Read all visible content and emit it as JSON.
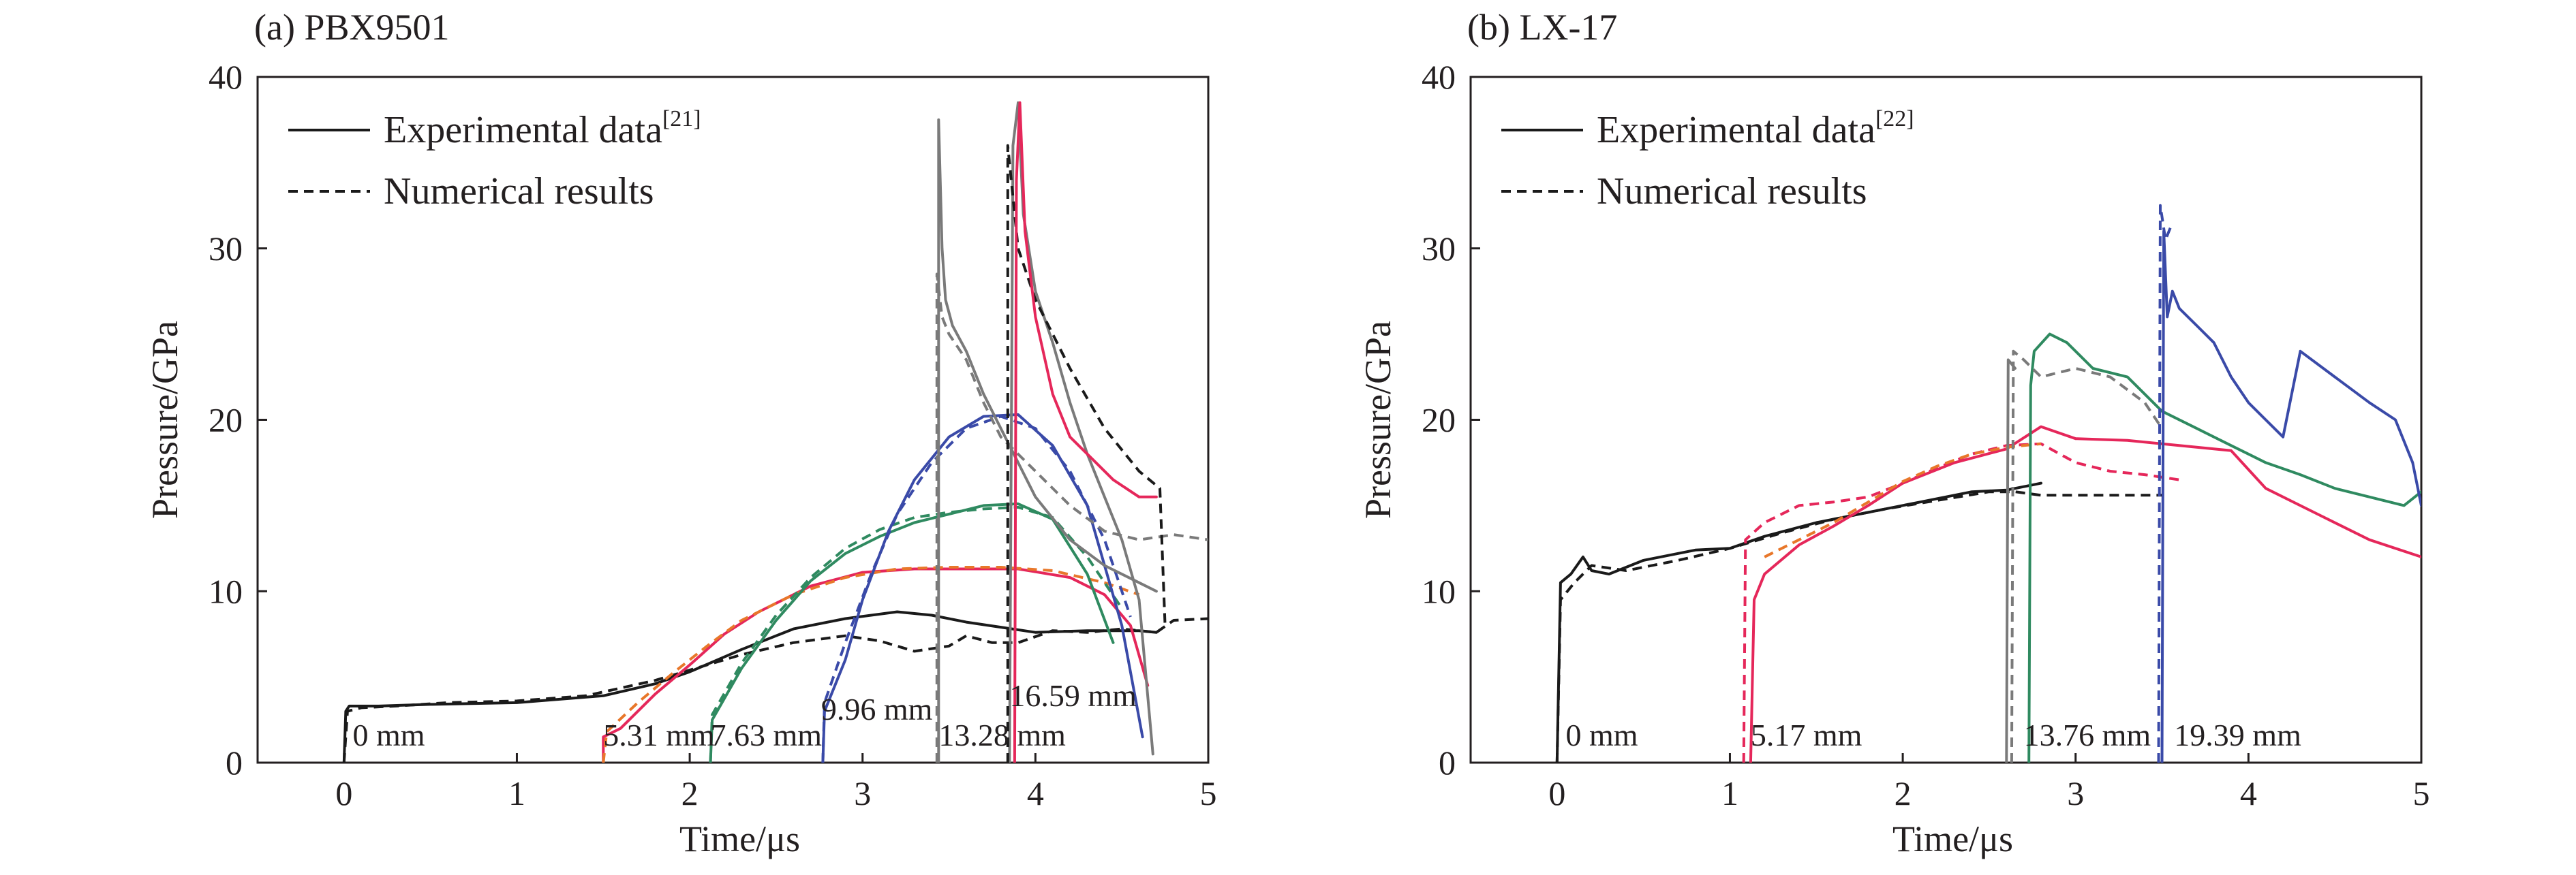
{
  "colors": {
    "axis": "#231f20",
    "black": "#1a1a1a",
    "red": "#e5275a",
    "green": "#2f8a60",
    "blue": "#3a4aa8",
    "gray": "#7a7a7a",
    "orange": "#e8772a"
  },
  "chart_data": [
    {
      "type": "line",
      "title": "(a) PBX9501",
      "xlabel": "Time/μs",
      "ylabel": "Pressure/GPa",
      "xlim": [
        -0.5,
        5
      ],
      "ylim": [
        0,
        40
      ],
      "xticks": [
        0,
        1,
        2,
        3,
        4,
        5
      ],
      "yticks": [
        0,
        10,
        20,
        30,
        40
      ],
      "grid": false,
      "legend": {
        "placement": "top-left",
        "entries": [
          {
            "label": "Experimental data",
            "sup": "[21]",
            "style": "solid"
          },
          {
            "label": "Numerical results",
            "sup": "",
            "style": "dashed"
          }
        ]
      },
      "annotations": [
        {
          "text": "0 mm",
          "x": 0.05,
          "y": 1.0,
          "color": "black"
        },
        {
          "text": "5.31 mm",
          "x": 1.5,
          "y": 1.0,
          "color": "red"
        },
        {
          "text": "7.63 mm",
          "x": 2.12,
          "y": 1.0,
          "color": "green"
        },
        {
          "text": "9.96 mm",
          "x": 2.76,
          "y": 2.5,
          "color": "blue"
        },
        {
          "text": "13.28 mm",
          "x": 3.44,
          "y": 1.0,
          "color": "gray"
        },
        {
          "text": "16.59 mm",
          "x": 3.85,
          "y": 3.3,
          "color": "black"
        }
      ],
      "series": [
        {
          "color": "black",
          "style": "solid",
          "x": [
            0,
            0.01,
            0.03,
            0.08,
            0.2,
            0.5,
            1.0,
            1.5,
            1.8,
            2.0,
            2.3,
            2.6,
            2.9,
            3.2,
            3.4,
            3.6,
            3.8,
            4.0,
            4.3,
            4.6,
            4.7
          ],
          "y": [
            0,
            3.0,
            3.3,
            3.3,
            3.3,
            3.4,
            3.5,
            3.9,
            4.6,
            5.3,
            6.6,
            7.8,
            8.4,
            8.8,
            8.6,
            8.2,
            7.9,
            7.6,
            7.7,
            7.7,
            7.6
          ]
        },
        {
          "color": "black",
          "style": "dashed",
          "x": [
            0,
            0.02,
            0.1,
            0.3,
            0.6,
            1.0,
            1.4,
            1.8,
            2.0,
            2.3,
            2.6,
            2.9,
            3.1,
            3.3,
            3.5,
            3.6,
            3.75,
            3.9,
            4.1,
            4.3,
            4.5,
            4.7,
            4.8,
            5.0
          ],
          "y": [
            0,
            3.0,
            3.2,
            3.3,
            3.5,
            3.6,
            3.9,
            4.8,
            5.4,
            6.3,
            7.0,
            7.4,
            7.1,
            6.5,
            6.8,
            7.4,
            7.0,
            7.0,
            7.7,
            7.6,
            7.8,
            7.6,
            8.3,
            8.4
          ]
        },
        {
          "color": "red",
          "style": "solid",
          "x": [
            1.5,
            1.5,
            1.6,
            1.8,
            2.0,
            2.2,
            2.4,
            2.7,
            3.0,
            3.3,
            3.6,
            3.9,
            4.2,
            4.4,
            4.55,
            4.65
          ],
          "y": [
            0,
            1.5,
            2.0,
            4.0,
            5.7,
            7.5,
            8.8,
            10.3,
            11.1,
            11.3,
            11.3,
            11.3,
            10.8,
            9.8,
            8.0,
            4.5
          ]
        },
        {
          "color": "orange",
          "style": "dashed",
          "x": [
            1.5,
            1.52,
            1.7,
            1.9,
            2.1,
            2.3,
            2.6,
            2.9,
            3.2,
            3.5,
            3.8,
            4.1,
            4.4,
            4.6
          ],
          "y": [
            0,
            1.8,
            3.5,
            5.2,
            6.8,
            8.3,
            9.8,
            10.8,
            11.3,
            11.4,
            11.4,
            11.2,
            10.5,
            9.8
          ]
        },
        {
          "color": "green",
          "style": "solid",
          "x": [
            2.12,
            2.13,
            2.3,
            2.5,
            2.7,
            2.9,
            3.1,
            3.3,
            3.5,
            3.7,
            3.9,
            4.1,
            4.3,
            4.45
          ],
          "y": [
            0,
            2.5,
            5.5,
            8.3,
            10.6,
            12.2,
            13.2,
            14.0,
            14.5,
            15.0,
            15.1,
            14.2,
            11.0,
            7.0
          ]
        },
        {
          "color": "green",
          "style": "dashed",
          "x": [
            2.12,
            2.13,
            2.3,
            2.5,
            2.7,
            2.9,
            3.1,
            3.3,
            3.5,
            3.7,
            3.9,
            4.1,
            4.3,
            4.5
          ],
          "y": [
            0,
            2.8,
            5.8,
            8.6,
            10.8,
            12.5,
            13.6,
            14.3,
            14.6,
            14.8,
            14.9,
            14.3,
            12.0,
            9.0
          ]
        },
        {
          "color": "blue",
          "style": "solid",
          "x": [
            2.77,
            2.78,
            2.9,
            3.0,
            3.15,
            3.3,
            3.5,
            3.7,
            3.9,
            4.1,
            4.3,
            4.5,
            4.62
          ],
          "y": [
            0,
            3.0,
            6.0,
            9.5,
            13.5,
            16.5,
            19.0,
            20.2,
            20.3,
            18.5,
            15.0,
            8.0,
            1.5
          ]
        },
        {
          "color": "blue",
          "style": "dashed",
          "x": [
            2.77,
            2.78,
            2.9,
            3.05,
            3.2,
            3.4,
            3.6,
            3.8,
            4.0,
            4.2,
            4.4,
            4.55
          ],
          "y": [
            0,
            3.5,
            7.0,
            11.0,
            14.5,
            17.5,
            19.5,
            20.2,
            19.5,
            17.0,
            13.0,
            8.5
          ]
        },
        {
          "color": "gray",
          "style": "solid",
          "x": [
            3.44,
            3.44,
            3.46,
            3.48,
            3.52,
            3.6,
            3.7,
            3.8,
            3.9,
            4.0,
            4.2,
            4.4,
            4.6,
            4.7
          ],
          "y": [
            0,
            37.5,
            30.0,
            27.0,
            25.5,
            24.0,
            21.5,
            19.5,
            17.5,
            15.5,
            13.0,
            11.5,
            10.5,
            10.0
          ]
        },
        {
          "color": "gray",
          "style": "dashed",
          "x": [
            3.43,
            3.43,
            3.46,
            3.5,
            3.6,
            3.7,
            3.8,
            4.0,
            4.2,
            4.4,
            4.6,
            4.8,
            5.0
          ],
          "y": [
            0,
            28.5,
            26.0,
            25.0,
            23.5,
            21.0,
            19.0,
            17.0,
            15.0,
            13.5,
            13.0,
            13.3,
            13.0
          ]
        },
        {
          "color": "gray",
          "style": "solid",
          "x": [
            3.85,
            3.87,
            3.9,
            3.93,
            4.0,
            4.1,
            4.2,
            4.3,
            4.4,
            4.5,
            4.6,
            4.68
          ],
          "y": [
            0,
            36.0,
            38.5,
            32.0,
            27.5,
            24.5,
            21.0,
            18.0,
            15.5,
            13.0,
            9.5,
            0.5
          ]
        },
        {
          "color": "black",
          "style": "dashed",
          "x": [
            3.84,
            3.84,
            3.9,
            4.0,
            4.2,
            4.4,
            4.6,
            4.72,
            4.75
          ],
          "y": [
            0,
            36.0,
            30.0,
            27.0,
            23.0,
            19.5,
            17.0,
            16.0,
            8.0
          ]
        },
        {
          "color": "red",
          "style": "solid",
          "x": [
            3.88,
            3.89,
            3.91,
            3.94,
            4.0,
            4.1,
            4.2,
            4.3,
            4.45,
            4.6,
            4.7
          ],
          "y": [
            0,
            34.0,
            38.5,
            31.0,
            26.0,
            21.5,
            19.0,
            18.0,
            16.5,
            15.5,
            15.5
          ]
        }
      ]
    },
    {
      "type": "line",
      "title": "(b) LX-17",
      "xlabel": "Time/μs",
      "ylabel": "Pressure/GPa",
      "xlim": [
        -0.5,
        5
      ],
      "ylim": [
        0,
        40
      ],
      "xticks": [
        0,
        1,
        2,
        3,
        4,
        5
      ],
      "yticks": [
        0,
        10,
        20,
        30,
        40
      ],
      "grid": false,
      "legend": {
        "placement": "top-left",
        "entries": [
          {
            "label": "Experimental data",
            "sup": "[22]",
            "style": "solid"
          },
          {
            "label": "Numerical results",
            "sup": "",
            "style": "dashed"
          }
        ]
      },
      "annotations": [
        {
          "text": "0 mm",
          "x": 0.05,
          "y": 1.0,
          "color": "black"
        },
        {
          "text": "5.17 mm",
          "x": 1.12,
          "y": 1.0,
          "color": "red"
        },
        {
          "text": "13.76 mm",
          "x": 2.7,
          "y": 1.0,
          "color": "gray"
        },
        {
          "text": "19.39 mm",
          "x": 3.57,
          "y": 1.0,
          "color": "blue"
        }
      ],
      "series": [
        {
          "color": "black",
          "style": "solid",
          "x": [
            0,
            0.02,
            0.08,
            0.15,
            0.2,
            0.3,
            0.5,
            0.8,
            1.0,
            1.2,
            1.5,
            1.8,
            2.1,
            2.4,
            2.6,
            2.75,
            2.8
          ],
          "y": [
            0,
            10.5,
            11.0,
            12.0,
            11.2,
            11.0,
            11.8,
            12.4,
            12.5,
            13.2,
            14.0,
            14.6,
            15.2,
            15.8,
            15.9,
            16.2,
            16.3
          ]
        },
        {
          "color": "black",
          "style": "dashed",
          "x": [
            0,
            0.02,
            0.1,
            0.2,
            0.4,
            0.7,
            1.0,
            1.3,
            1.6,
            1.9,
            2.2,
            2.5,
            2.65,
            2.8,
            3.1,
            3.5
          ],
          "y": [
            0,
            9.5,
            10.5,
            11.5,
            11.2,
            11.8,
            12.5,
            13.4,
            14.2,
            14.8,
            15.3,
            15.8,
            15.8,
            15.6,
            15.6,
            15.6
          ]
        },
        {
          "color": "red",
          "style": "solid",
          "x": [
            1.12,
            1.14,
            1.2,
            1.4,
            1.6,
            1.8,
            2.0,
            2.3,
            2.6,
            2.8,
            3.0,
            3.3,
            3.6,
            3.9,
            4.1,
            4.4,
            4.7,
            5.0
          ],
          "y": [
            0,
            9.5,
            11.0,
            12.7,
            13.8,
            15.0,
            16.3,
            17.5,
            18.3,
            19.6,
            18.9,
            18.8,
            18.5,
            18.2,
            16.0,
            14.5,
            13.0,
            12.0
          ]
        },
        {
          "color": "red",
          "style": "dashed",
          "x": [
            1.08,
            1.09,
            1.2,
            1.4,
            1.6,
            1.8,
            2.0,
            2.2,
            2.4,
            2.6,
            2.8,
            3.0,
            3.2,
            3.4,
            3.6
          ],
          "y": [
            0,
            13.0,
            14.0,
            15.0,
            15.2,
            15.5,
            16.3,
            17.2,
            18.0,
            18.5,
            18.6,
            17.5,
            17.0,
            16.8,
            16.5
          ]
        },
        {
          "color": "orange",
          "style": "dashed",
          "x": [
            1.2,
            1.4,
            1.6,
            1.8,
            2.0,
            2.2,
            2.4,
            2.6,
            2.8
          ],
          "y": [
            12.0,
            13.0,
            14.0,
            15.2,
            16.4,
            17.3,
            18.0,
            18.4,
            18.6
          ]
        },
        {
          "color": "green",
          "style": "solid",
          "x": [
            2.73,
            2.74,
            2.76,
            2.85,
            2.95,
            3.1,
            3.3,
            3.5,
            3.7,
            3.9,
            4.1,
            4.3,
            4.5,
            4.7,
            4.9,
            5.0
          ],
          "y": [
            0,
            22.0,
            24.0,
            25.0,
            24.5,
            23.0,
            22.5,
            20.5,
            19.5,
            18.5,
            17.5,
            16.8,
            16.0,
            15.5,
            15.0,
            15.8
          ]
        },
        {
          "color": "gray",
          "style": "dashed",
          "x": [
            2.63,
            2.64,
            2.7,
            2.8,
            3.0,
            3.2,
            3.4,
            3.5
          ],
          "y": [
            0,
            24.0,
            23.5,
            22.5,
            23.0,
            22.5,
            21.0,
            19.5
          ]
        },
        {
          "color": "gray",
          "style": "solid",
          "x": [
            2.6,
            2.61,
            2.65
          ],
          "y": [
            0,
            23.5,
            23.0
          ]
        },
        {
          "color": "blue",
          "style": "solid",
          "x": [
            3.5,
            3.51,
            3.53,
            3.56,
            3.6,
            3.7,
            3.8,
            3.9,
            4.0,
            4.1,
            4.2,
            4.3,
            4.5,
            4.7,
            4.85,
            4.95,
            5.0
          ],
          "y": [
            0,
            31.0,
            26.0,
            27.5,
            26.5,
            25.5,
            24.5,
            22.5,
            21.0,
            20.0,
            19.0,
            24.0,
            22.5,
            21.0,
            20.0,
            17.5,
            15.0
          ]
        },
        {
          "color": "blue",
          "style": "dashed",
          "x": [
            3.48,
            3.49,
            3.52,
            3.56
          ],
          "y": [
            0,
            32.5,
            30.5,
            31.5
          ]
        }
      ]
    }
  ]
}
